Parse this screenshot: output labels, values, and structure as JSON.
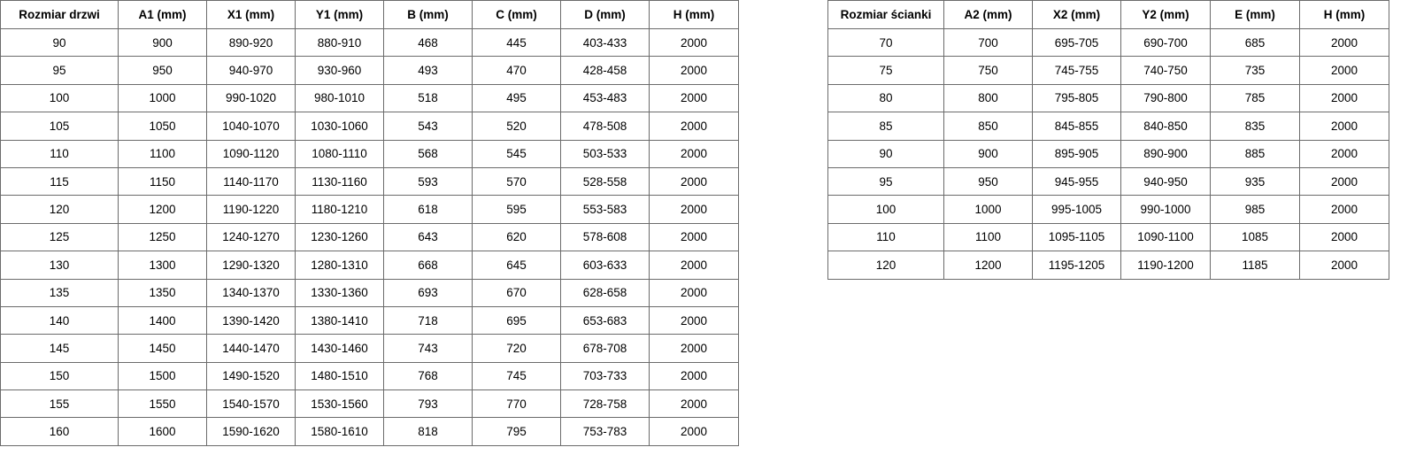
{
  "door_table": {
    "headers": [
      "Rozmiar drzwi",
      "A1 (mm)",
      "X1 (mm)",
      "Y1 (mm)",
      "B (mm)",
      "C (mm)",
      "D (mm)",
      "H (mm)"
    ],
    "rows": [
      [
        "90",
        "900",
        "890-920",
        "880-910",
        "468",
        "445",
        "403-433",
        "2000"
      ],
      [
        "95",
        "950",
        "940-970",
        "930-960",
        "493",
        "470",
        "428-458",
        "2000"
      ],
      [
        "100",
        "1000",
        "990-1020",
        "980-1010",
        "518",
        "495",
        "453-483",
        "2000"
      ],
      [
        "105",
        "1050",
        "1040-1070",
        "1030-1060",
        "543",
        "520",
        "478-508",
        "2000"
      ],
      [
        "110",
        "1100",
        "1090-1120",
        "1080-1110",
        "568",
        "545",
        "503-533",
        "2000"
      ],
      [
        "115",
        "1150",
        "1140-1170",
        "1130-1160",
        "593",
        "570",
        "528-558",
        "2000"
      ],
      [
        "120",
        "1200",
        "1190-1220",
        "1180-1210",
        "618",
        "595",
        "553-583",
        "2000"
      ],
      [
        "125",
        "1250",
        "1240-1270",
        "1230-1260",
        "643",
        "620",
        "578-608",
        "2000"
      ],
      [
        "130",
        "1300",
        "1290-1320",
        "1280-1310",
        "668",
        "645",
        "603-633",
        "2000"
      ],
      [
        "135",
        "1350",
        "1340-1370",
        "1330-1360",
        "693",
        "670",
        "628-658",
        "2000"
      ],
      [
        "140",
        "1400",
        "1390-1420",
        "1380-1410",
        "718",
        "695",
        "653-683",
        "2000"
      ],
      [
        "145",
        "1450",
        "1440-1470",
        "1430-1460",
        "743",
        "720",
        "678-708",
        "2000"
      ],
      [
        "150",
        "1500",
        "1490-1520",
        "1480-1510",
        "768",
        "745",
        "703-733",
        "2000"
      ],
      [
        "155",
        "1550",
        "1540-1570",
        "1530-1560",
        "793",
        "770",
        "728-758",
        "2000"
      ],
      [
        "160",
        "1600",
        "1590-1620",
        "1580-1610",
        "818",
        "795",
        "753-783",
        "2000"
      ]
    ]
  },
  "wall_table": {
    "headers": [
      "Rozmiar ścianki",
      "A2 (mm)",
      "X2 (mm)",
      "Y2 (mm)",
      "E (mm)",
      "H (mm)"
    ],
    "rows": [
      [
        "70",
        "700",
        "695-705",
        "690-700",
        "685",
        "2000"
      ],
      [
        "75",
        "750",
        "745-755",
        "740-750",
        "735",
        "2000"
      ],
      [
        "80",
        "800",
        "795-805",
        "790-800",
        "785",
        "2000"
      ],
      [
        "85",
        "850",
        "845-855",
        "840-850",
        "835",
        "2000"
      ],
      [
        "90",
        "900",
        "895-905",
        "890-900",
        "885",
        "2000"
      ],
      [
        "95",
        "950",
        "945-955",
        "940-950",
        "935",
        "2000"
      ],
      [
        "100",
        "1000",
        "995-1005",
        "990-1000",
        "985",
        "2000"
      ],
      [
        "110",
        "1100",
        "1095-1105",
        "1090-1100",
        "1085",
        "2000"
      ],
      [
        "120",
        "1200",
        "1195-1205",
        "1190-1200",
        "1185",
        "2000"
      ]
    ]
  }
}
